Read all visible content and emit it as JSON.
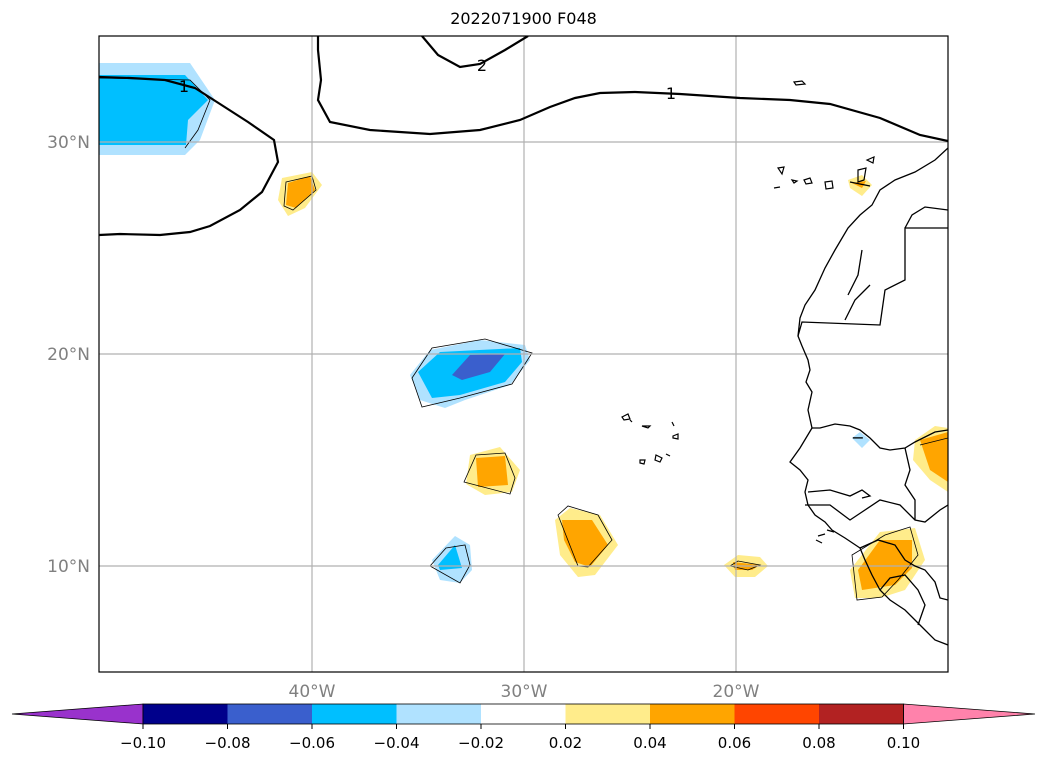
{
  "title": "2022071900 F048",
  "map": {
    "lat_labels": [
      "30°N",
      "20°N",
      "10°N"
    ],
    "lon_labels": [
      "40°W",
      "30°W",
      "20°W"
    ],
    "contour_labels": [
      "1",
      "2",
      "1"
    ],
    "small_contour_label": "−",
    "extent": {
      "lon_min": -50,
      "lon_max": -10,
      "lat_min": 5,
      "lat_max": 35
    }
  },
  "colorbar": {
    "ticks": [
      "−0.10",
      "−0.08",
      "−0.06",
      "−0.04",
      "−0.02",
      "0.02",
      "0.04",
      "0.06",
      "0.08",
      "0.10"
    ],
    "colors": [
      "#9932cc",
      "#00008b",
      "#3a5fcd",
      "#00bfff",
      "#b0e2ff",
      "#ffffff",
      "#ffec8b",
      "#ffa500",
      "#ff4500",
      "#b22222",
      "#ff82ab"
    ],
    "extend": "both"
  }
}
